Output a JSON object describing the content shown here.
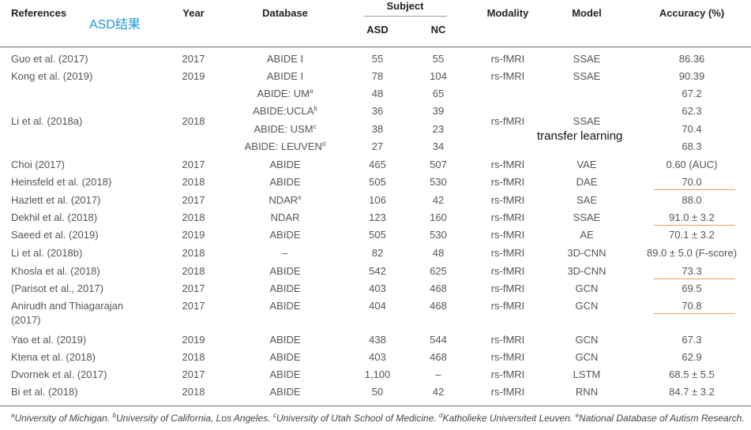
{
  "headers": {
    "references": "References",
    "year": "Year",
    "database": "Database",
    "subject": "Subject",
    "asd": "ASD",
    "nc": "NC",
    "modality": "Modality",
    "model": "Model",
    "accuracy": "Accuracy (%)"
  },
  "annotations": {
    "asd_results": "ASD结果",
    "transfer_learning": "transfer learning"
  },
  "rows": [
    {
      "ref": "Guo et al. (2017)",
      "year": "2017",
      "db": "ABIDE I",
      "asd": "55",
      "nc": "55",
      "mod": "rs-fMRI",
      "model": "SSAE",
      "acc": "86.36"
    },
    {
      "ref": "Kong et al. (2019)",
      "year": "2019",
      "db": "ABIDE I",
      "asd": "78",
      "nc": "104",
      "mod": "rs-fMRI",
      "model": "SSAE",
      "acc": "90.39"
    },
    {
      "ref": "",
      "year": "",
      "db": "ABIDE: UM",
      "db_sup": "a",
      "asd": "48",
      "nc": "65",
      "mod": "",
      "model": "",
      "acc": "67.2"
    },
    {
      "ref": "",
      "year": "",
      "db": "ABIDE:UCLA",
      "db_sup": "b",
      "asd": "36",
      "nc": "39",
      "mod": "",
      "model": "",
      "acc": "62.3"
    },
    {
      "ref": "",
      "year": "",
      "db": "ABIDE: USM",
      "db_sup": "c",
      "asd": "38",
      "nc": "23",
      "mod": "",
      "model": "",
      "acc": "70.4"
    },
    {
      "ref": "",
      "year": "",
      "db": "ABIDE: LEUVEN",
      "db_sup": "d",
      "asd": "27",
      "nc": "34",
      "mod": "",
      "model": "",
      "acc": "68.3"
    },
    {
      "ref": "Choi (2017)",
      "year": "2017",
      "db": "ABIDE",
      "asd": "465",
      "nc": "507",
      "mod": "rs-fMRI",
      "model": "VAE",
      "acc": "0.60 (AUC)"
    },
    {
      "ref": "Heinsfeld et al. (2018)",
      "year": "2018",
      "db": "ABIDE",
      "asd": "505",
      "nc": "530",
      "mod": "rs-fMRI",
      "model": "DAE",
      "acc": "70.0"
    },
    {
      "ref": "Hazlett et al. (2017)",
      "year": "2017",
      "db": "NDAR",
      "db_sup": "e",
      "asd": "106",
      "nc": "42",
      "mod": "rs-fMRI",
      "model": "SAE",
      "acc": "88.0"
    },
    {
      "ref": "Dekhil et al. (2018)",
      "year": "2018",
      "db": "NDAR",
      "asd": "123",
      "nc": "160",
      "mod": "rs-fMRI",
      "model": "SSAE",
      "acc": "91.0 ± 3.2"
    },
    {
      "ref": "Saeed et al. (2019)",
      "year": "2019",
      "db": "ABIDE",
      "asd": "505",
      "nc": "530",
      "mod": "rs-fMRI",
      "model": "AE",
      "acc": "70.1 ± 3.2"
    },
    {
      "ref": "Li et al. (2018b)",
      "year": "2018",
      "db": "–",
      "asd": "82",
      "nc": "48",
      "mod": "rs-fMRI",
      "model": "3D-CNN",
      "acc": "89.0 ± 5.0 (F-score)"
    },
    {
      "ref": "Khosla et al. (2018)",
      "year": "2018",
      "db": "ABIDE",
      "asd": "542",
      "nc": "625",
      "mod": "rs-fMRI",
      "model": "3D-CNN",
      "acc": "73.3"
    },
    {
      "ref": "(Parisot et al., 2017)",
      "year": "2017",
      "db": "ABIDE",
      "asd": "403",
      "nc": "468",
      "mod": "rs-fMRI",
      "model": "GCN",
      "acc": "69.5"
    },
    {
      "ref": "Anirudh and Thiagarajan",
      "ref2": "(2017)",
      "year": "2017",
      "db": "ABIDE",
      "asd": "404",
      "nc": "468",
      "mod": "rs-fMRI",
      "model": "GCN",
      "acc": "70.8"
    },
    {
      "ref": "Yao et al. (2019)",
      "year": "2019",
      "db": "ABIDE",
      "asd": "438",
      "nc": "544",
      "mod": "rs-fMRI",
      "model": "GCN",
      "acc": "67.3"
    },
    {
      "ref": "Ktena et al. (2018)",
      "year": "2018",
      "db": "ABIDE",
      "asd": "403",
      "nc": "468",
      "mod": "rs-fMRI",
      "model": "GCN",
      "acc": "62.9"
    },
    {
      "ref": "Dvornek et al. (2017)",
      "year": "2017",
      "db": "ABIDE",
      "asd": "1,100",
      "nc": "–",
      "mod": "rs-fMRI",
      "model": "LSTM",
      "acc": "68.5 ± 5.5"
    },
    {
      "ref": "Bi et al. (2018)",
      "year": "2018",
      "db": "ABIDE",
      "asd": "50",
      "nc": "42",
      "mod": "rs-fMRI",
      "model": "RNN",
      "acc": "84.7 ± 3.2"
    }
  ],
  "merged": {
    "ref": "Li et al. (2018a)",
    "year": "2018",
    "mod": "rs-fMRI",
    "model": "SSAE"
  },
  "footnote": [
    {
      "sup": "a",
      "text": "University of Michigan. "
    },
    {
      "sup": "b",
      "text": "University of California, Los Angeles. "
    },
    {
      "sup": "c",
      "text": "University of Utah School of Medicine. "
    },
    {
      "sup": "d",
      "text": "Katholieke Universiteit Leuven. "
    },
    {
      "sup": "e",
      "text": "National Database of Autism Research."
    }
  ],
  "colors": {
    "annotation_blue": "#1a9ad6",
    "underline_orange": "#e8a060"
  },
  "underlined_rows": [
    7,
    9,
    12,
    14
  ]
}
